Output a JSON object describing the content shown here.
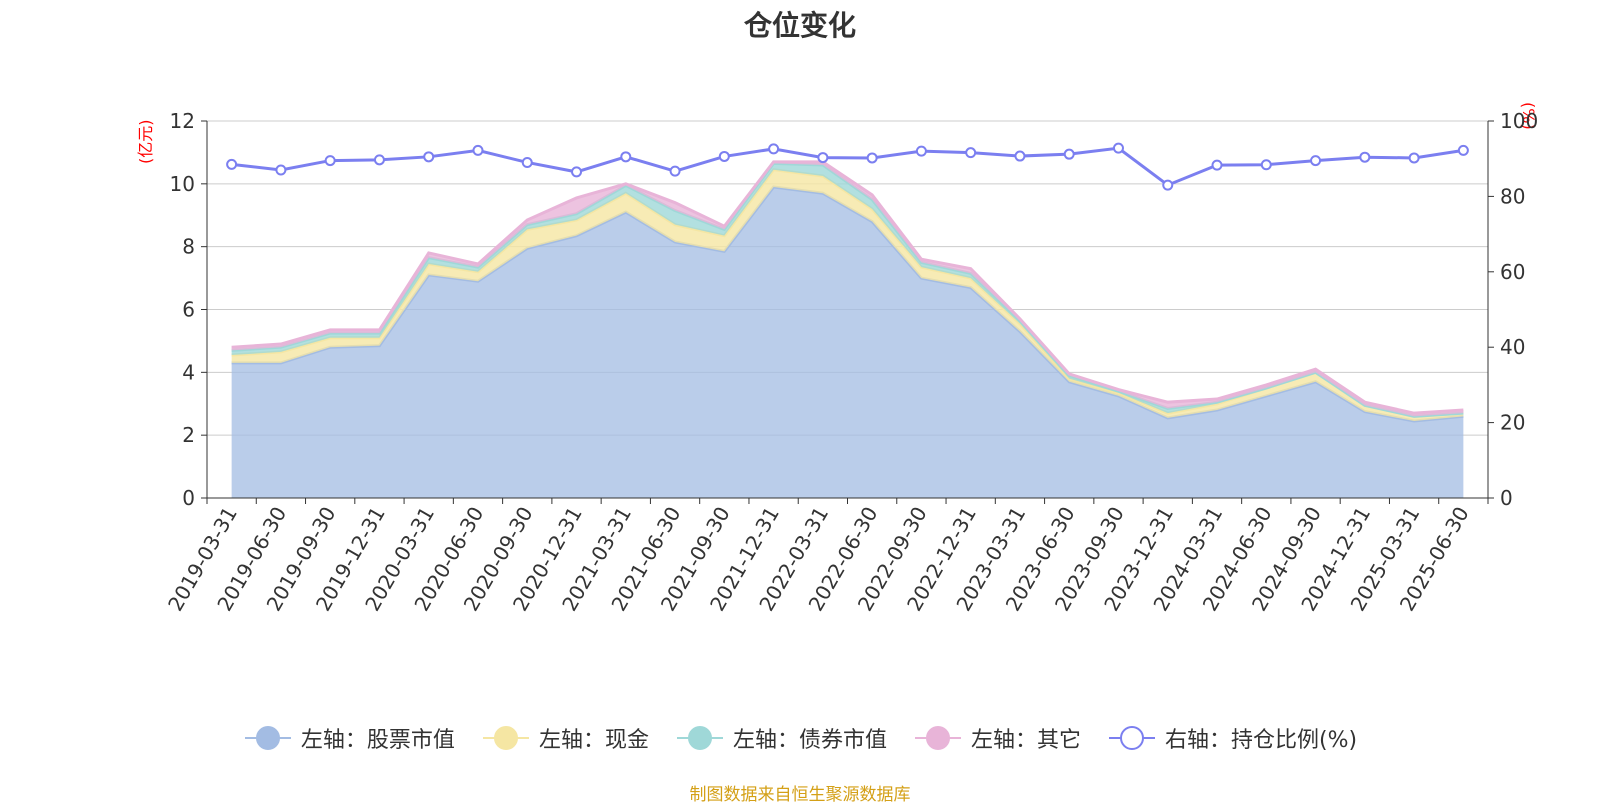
{
  "title": "仓位变化",
  "footer": "制图数据来自恒生聚源数据库",
  "left_unit": "(亿元)",
  "right_unit": "(%)",
  "chart_data": {
    "type": "area",
    "title": "仓位变化",
    "x": [
      "2019-03-31",
      "2019-06-30",
      "2019-09-30",
      "2019-12-31",
      "2020-03-31",
      "2020-06-30",
      "2020-09-30",
      "2020-12-31",
      "2021-03-31",
      "2021-06-30",
      "2021-09-30",
      "2021-12-31",
      "2022-03-31",
      "2022-06-30",
      "2022-09-30",
      "2022-12-31",
      "2023-03-31",
      "2023-06-30",
      "2023-09-30",
      "2023-12-31",
      "2024-03-31",
      "2024-06-30",
      "2024-09-30",
      "2024-12-31",
      "2025-03-31",
      "2025-06-30"
    ],
    "left_axis": {
      "unit": "(亿元)",
      "ylim": [
        0,
        12
      ],
      "ticks": [
        0,
        2,
        4,
        6,
        8,
        10,
        12
      ]
    },
    "right_axis": {
      "unit": "(%)",
      "ylim": [
        0,
        100
      ],
      "ticks": [
        0,
        20,
        40,
        60,
        80,
        100
      ]
    },
    "grid": true,
    "legend_position": "bottom",
    "series": [
      {
        "name": "左轴：股票市值",
        "type": "area",
        "stacked": true,
        "axis": "left",
        "color": "#a3bce3",
        "values": [
          4.3,
          4.3,
          4.8,
          4.85,
          7.1,
          6.9,
          7.95,
          8.35,
          9.1,
          8.15,
          7.85,
          9.9,
          9.7,
          8.8,
          7.0,
          6.7,
          5.3,
          3.7,
          3.25,
          2.55,
          2.8,
          3.25,
          3.7,
          2.75,
          2.45,
          2.6
        ]
      },
      {
        "name": "左轴：现金",
        "type": "area",
        "stacked": true,
        "axis": "left",
        "color": "#f5e6a3",
        "values": [
          0.25,
          0.35,
          0.3,
          0.25,
          0.35,
          0.3,
          0.6,
          0.5,
          0.6,
          0.55,
          0.5,
          0.55,
          0.55,
          0.4,
          0.35,
          0.3,
          0.25,
          0.1,
          0.1,
          0.15,
          0.2,
          0.25,
          0.3,
          0.2,
          0.15,
          0.1
        ]
      },
      {
        "name": "左轴：债券市值",
        "type": "area",
        "stacked": true,
        "axis": "left",
        "color": "#9fd8d8",
        "values": [
          0.15,
          0.15,
          0.15,
          0.15,
          0.2,
          0.15,
          0.15,
          0.2,
          0.25,
          0.45,
          0.2,
          0.2,
          0.35,
          0.3,
          0.15,
          0.15,
          0.1,
          0.1,
          0.05,
          0.15,
          0.05,
          0.0,
          0.0,
          0.0,
          0.0,
          0.0
        ]
      },
      {
        "name": "左轴：其它",
        "type": "area",
        "stacked": true,
        "axis": "left",
        "color": "#e8b4d8",
        "values": [
          0.1,
          0.1,
          0.1,
          0.1,
          0.15,
          0.1,
          0.15,
          0.5,
          0.05,
          0.25,
          0.1,
          0.05,
          0.1,
          0.15,
          0.1,
          0.15,
          0.05,
          0.05,
          0.05,
          0.2,
          0.1,
          0.1,
          0.1,
          0.1,
          0.1,
          0.1
        ]
      },
      {
        "name": "右轴：持仓比例(%)",
        "type": "line",
        "axis": "right",
        "color": "#7b7ff0",
        "values": [
          88.5,
          87,
          89.5,
          89.7,
          90.5,
          92.2,
          89,
          86.5,
          90.5,
          86.7,
          90.6,
          92.6,
          90.3,
          90.2,
          92,
          91.6,
          90.7,
          91.2,
          92.8,
          83,
          88.3,
          88.4,
          89.5,
          90.4,
          90.2,
          92.2
        ]
      }
    ]
  }
}
